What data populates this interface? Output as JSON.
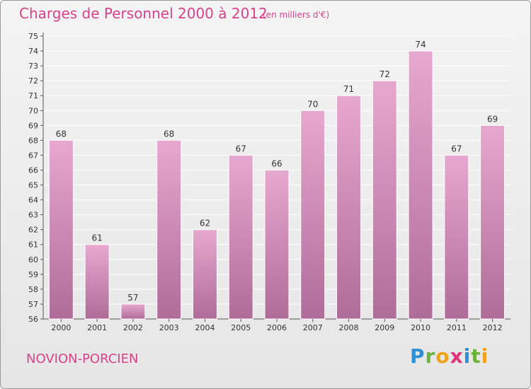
{
  "title": "Charges de Personnel 2000 à 2012",
  "subtitle": "(en milliers d'€)",
  "commune": "NOVION-PORCIEN",
  "brand": "Proxiti",
  "chart_data": {
    "type": "bar",
    "categories": [
      "2000",
      "2001",
      "2002",
      "2003",
      "2004",
      "2005",
      "2006",
      "2007",
      "2008",
      "2009",
      "2010",
      "2011",
      "2012"
    ],
    "values": [
      68,
      61,
      57,
      68,
      62,
      67,
      66,
      70,
      71,
      72,
      74,
      67,
      69
    ],
    "title": "Charges de Personnel 2000 à 2012",
    "ylim": [
      56,
      75
    ],
    "yticks": [
      56,
      57,
      58,
      59,
      60,
      61,
      62,
      63,
      64,
      65,
      66,
      67,
      68,
      69,
      70,
      71,
      72,
      73,
      74,
      75
    ],
    "grid": true,
    "bar_color": "#d98cba"
  }
}
